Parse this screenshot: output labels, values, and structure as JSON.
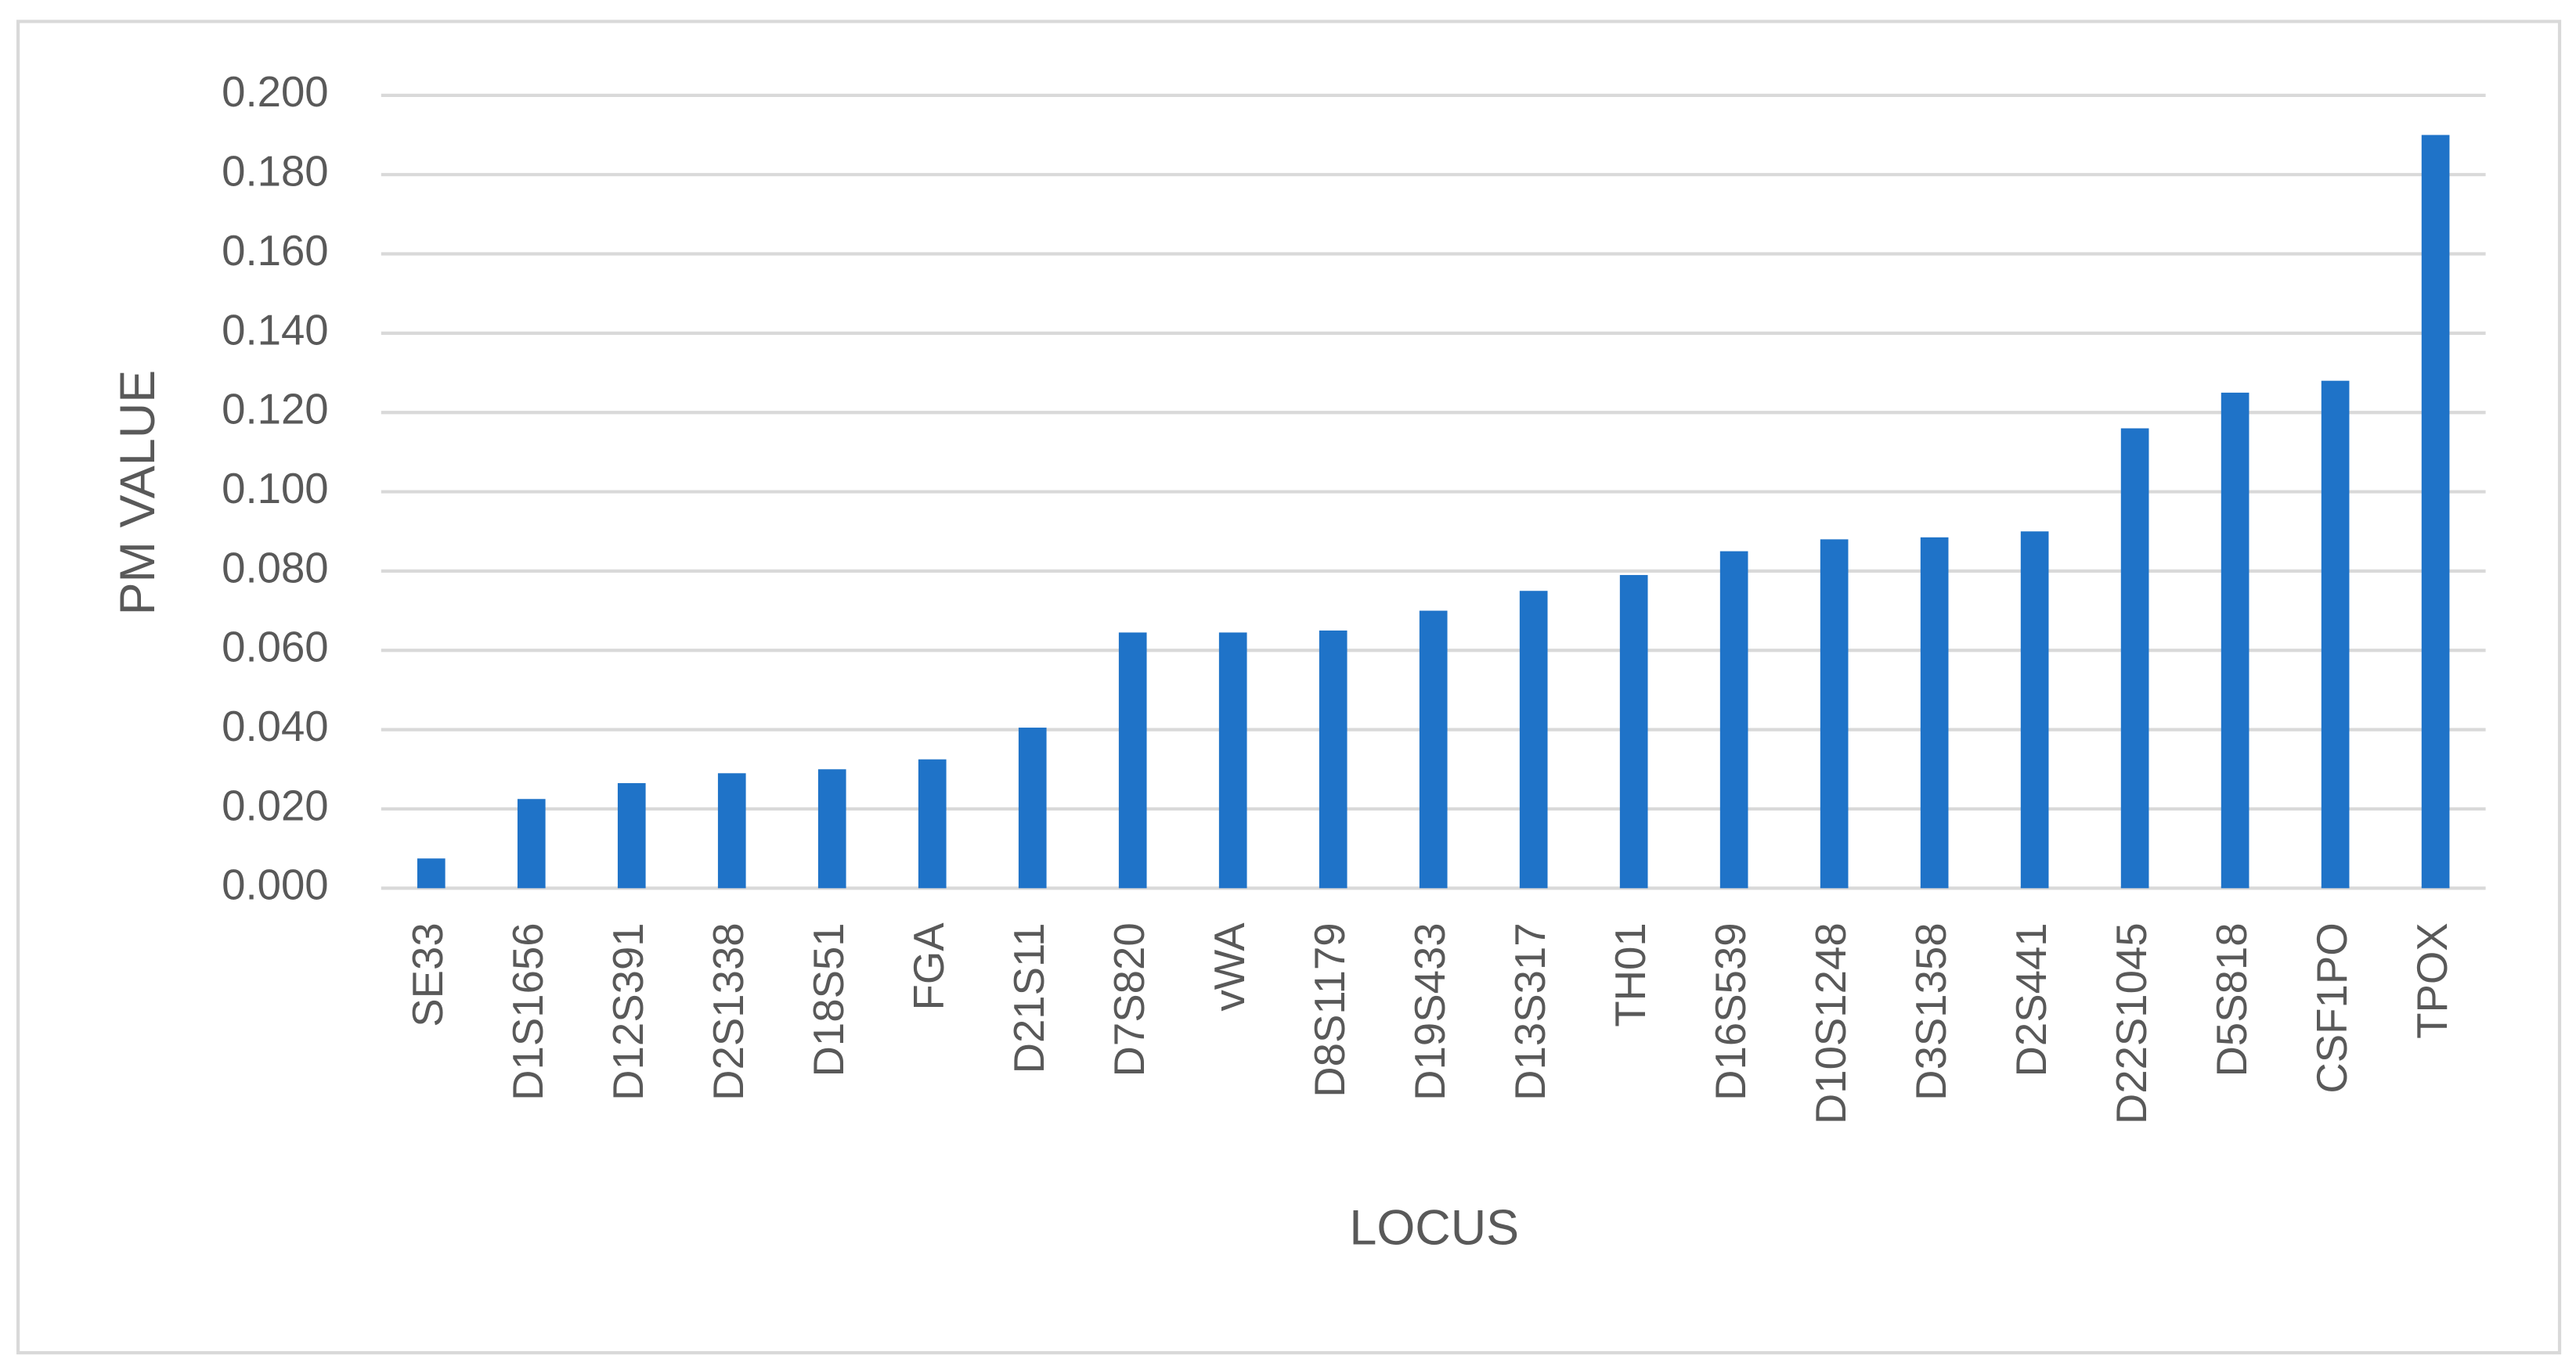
{
  "chart_data": {
    "type": "bar",
    "x_label": "LOCUS",
    "y_label": "PM VALUE",
    "categories": [
      "SE33",
      "D1S1656",
      "D12S391",
      "D2S1338",
      "D18S51",
      "FGA",
      "D21S11",
      "D7S820",
      "vWA",
      "D8S1179",
      "D19S433",
      "D13S317",
      "TH01",
      "D16S539",
      "D10S1248",
      "D3S1358",
      "D2S441",
      "D22S1045",
      "D5S818",
      "CSF1PO",
      "TPOX"
    ],
    "values": [
      0.0075,
      0.0225,
      0.0265,
      0.029,
      0.03,
      0.0325,
      0.0405,
      0.0645,
      0.0645,
      0.065,
      0.07,
      0.075,
      0.079,
      0.085,
      0.088,
      0.0885,
      0.09,
      0.116,
      0.125,
      0.128,
      0.19
    ],
    "color": "#1f73c8",
    "ylim": [
      0,
      0.2
    ],
    "yticks": [
      {
        "value": 0,
        "label": "0.000"
      },
      {
        "value": 0.02,
        "label": "0.020"
      },
      {
        "value": 0.04,
        "label": "0.040"
      },
      {
        "value": 0.06,
        "label": "0.060"
      },
      {
        "value": 0.08,
        "label": "0.080"
      },
      {
        "value": 0.1,
        "label": "0.100"
      },
      {
        "value": 0.12,
        "label": "0.120"
      },
      {
        "value": 0.14,
        "label": "0.140"
      },
      {
        "value": 0.16,
        "label": "0.160"
      },
      {
        "value": 0.18,
        "label": "0.180"
      },
      {
        "value": 0.2,
        "label": "0.200"
      }
    ],
    "grid": true
  }
}
